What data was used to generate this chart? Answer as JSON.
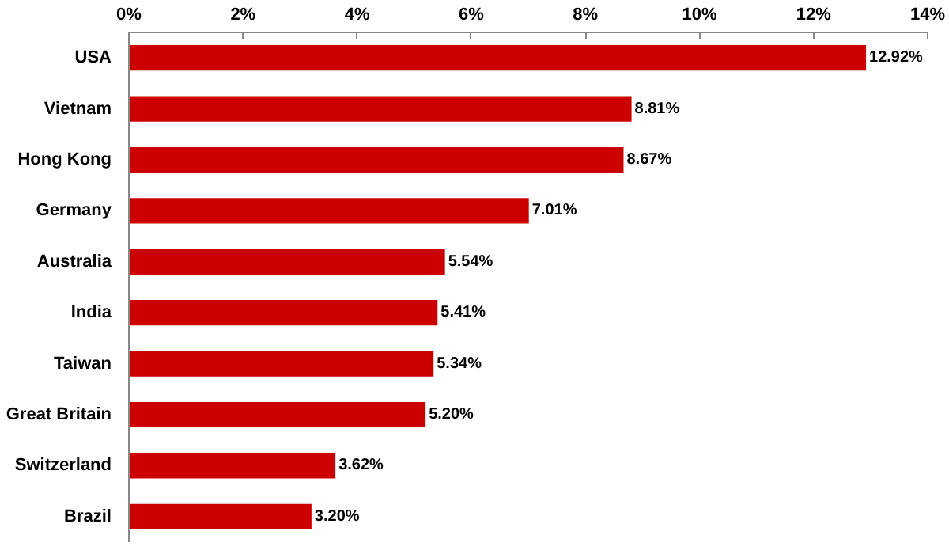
{
  "chart_data": {
    "type": "bar",
    "orientation": "horizontal",
    "categories": [
      "USA",
      "Vietnam",
      "Hong Kong",
      "Germany",
      "Australia",
      "India",
      "Taiwan",
      "Great Britain",
      "Switzerland",
      "Brazil"
    ],
    "values": [
      12.92,
      8.81,
      8.67,
      7.01,
      5.54,
      5.41,
      5.34,
      5.2,
      3.62,
      3.2
    ],
    "value_labels": [
      "12.92%",
      "8.81%",
      "8.67%",
      "7.01%",
      "5.54%",
      "5.41%",
      "5.34%",
      "5.20%",
      "3.62%",
      "3.20%"
    ],
    "color": "#cc0000",
    "xlim": [
      0,
      14
    ],
    "xticks": [
      {
        "value": 0,
        "label": "0%"
      },
      {
        "value": 2,
        "label": "2%"
      },
      {
        "value": 4,
        "label": "4%"
      },
      {
        "value": 6,
        "label": "6%"
      },
      {
        "value": 8,
        "label": "8%"
      },
      {
        "value": 10,
        "label": "10%"
      },
      {
        "value": 12,
        "label": "12%"
      },
      {
        "value": 14,
        "label": "14%"
      }
    ],
    "grid": false
  }
}
